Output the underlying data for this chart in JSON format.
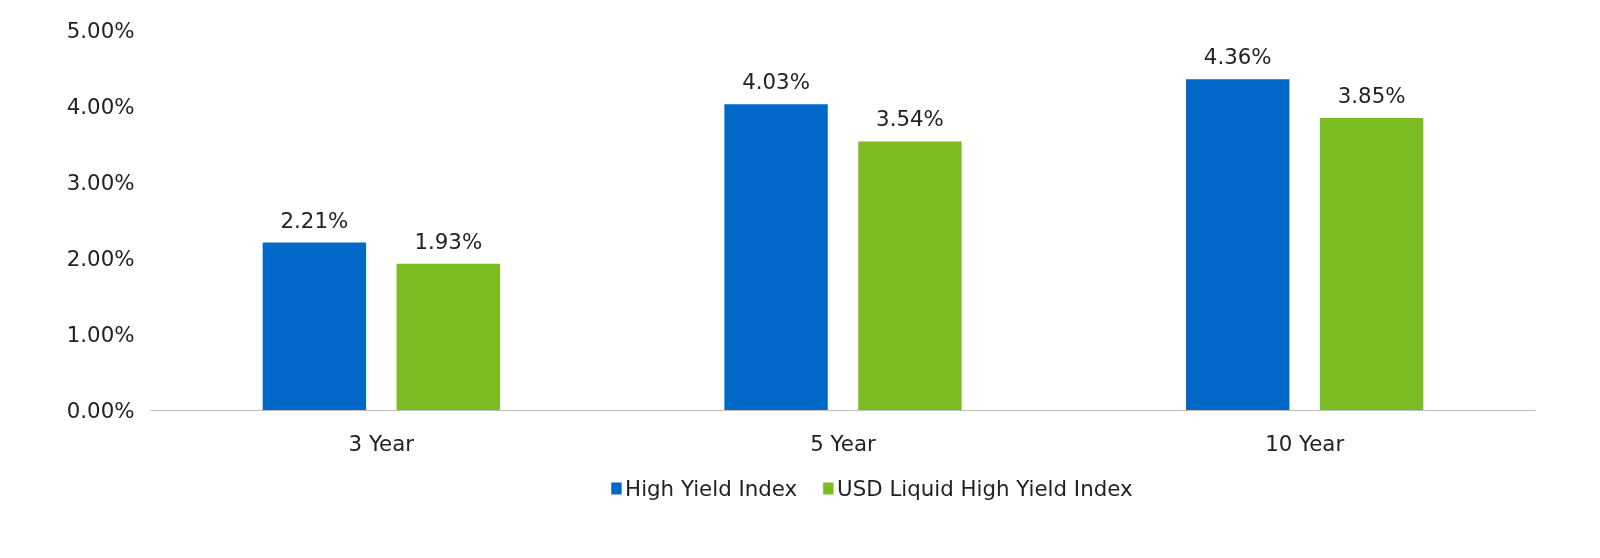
{
  "chart_data": {
    "type": "bar",
    "categories": [
      "3 Year",
      "5 Year",
      "10 Year"
    ],
    "series": [
      {
        "name": "High Yield Index",
        "color": "#0069c8",
        "values": [
          2.21,
          4.03,
          4.36
        ],
        "value_labels": [
          "2.21%",
          "4.03%",
          "4.36%"
        ]
      },
      {
        "name": "USD Liquid High Yield Index",
        "color": "#7bbd23",
        "values": [
          1.93,
          3.54,
          3.85
        ],
        "value_labels": [
          "1.93%",
          "3.54%",
          "3.85%"
        ]
      }
    ],
    "ylim": [
      0,
      5
    ],
    "yticks": [
      {
        "value": 0,
        "label": "0.00%"
      },
      {
        "value": 1,
        "label": "1.00%"
      },
      {
        "value": 2,
        "label": "2.00%"
      },
      {
        "value": 3,
        "label": "3.00%"
      },
      {
        "value": 4,
        "label": "4.00%"
      },
      {
        "value": 5,
        "label": "5.00%"
      }
    ],
    "grid": false,
    "legend": "bottom"
  }
}
